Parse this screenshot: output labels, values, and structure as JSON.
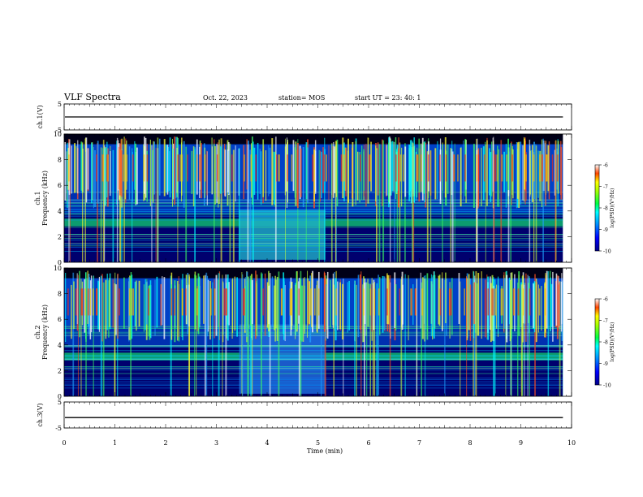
{
  "header": {
    "title": "VLF Spectra",
    "date": "Oct. 22, 2023",
    "station": "station= MOS",
    "start_ut": "start  UT =   23: 40: 1"
  },
  "chart_data": {
    "type": "heatmap",
    "xlabel": "Time  (min)",
    "xlim": [
      0,
      10
    ],
    "xticks": [
      "0",
      "1",
      "2",
      "3",
      "4",
      "5",
      "6",
      "7",
      "8",
      "9",
      "10"
    ],
    "data_end_min": 9.83,
    "panels": [
      {
        "id": "ch1-voltage",
        "type": "line",
        "ylabel": "ch.1(V)",
        "ylim": [
          -5,
          5
        ],
        "yticks": [
          "5",
          "-5"
        ],
        "level": 0
      },
      {
        "id": "ch1-spectrogram",
        "type": "heatmap",
        "ylabel_lines": [
          "ch.1",
          "Frequency  (kHz)"
        ],
        "ylim": [
          0,
          10
        ],
        "yticks": [
          "0",
          "2",
          "4",
          "6",
          "8",
          "10"
        ],
        "band_minutes": [
          3.45,
          5.15
        ],
        "colorbar": {
          "label": "log(PSD)(V²/Hz)",
          "range": [
            -10,
            -6
          ],
          "ticks": [
            "-6",
            "-7",
            "-8",
            "-9",
            "-10"
          ]
        }
      },
      {
        "id": "ch2-spectrogram",
        "type": "heatmap",
        "ylabel_lines": [
          "ch.2",
          "Frequency  (kHz)"
        ],
        "ylim": [
          0,
          10
        ],
        "yticks": [
          "0",
          "2",
          "4",
          "6",
          "8",
          "10"
        ],
        "band_minutes": [
          3.45,
          5.15
        ],
        "colorbar": {
          "label": "log(PSD)(V²/Hz)",
          "range": [
            -10,
            -6
          ],
          "ticks": [
            "-6",
            "-7",
            "-8",
            "-9",
            "-10"
          ]
        }
      },
      {
        "id": "ch3-voltage",
        "type": "line",
        "ylabel": "ch.3(V)",
        "ylim": [
          -5,
          5
        ],
        "yticks": [
          "5",
          "-5"
        ],
        "level": -1
      }
    ]
  }
}
